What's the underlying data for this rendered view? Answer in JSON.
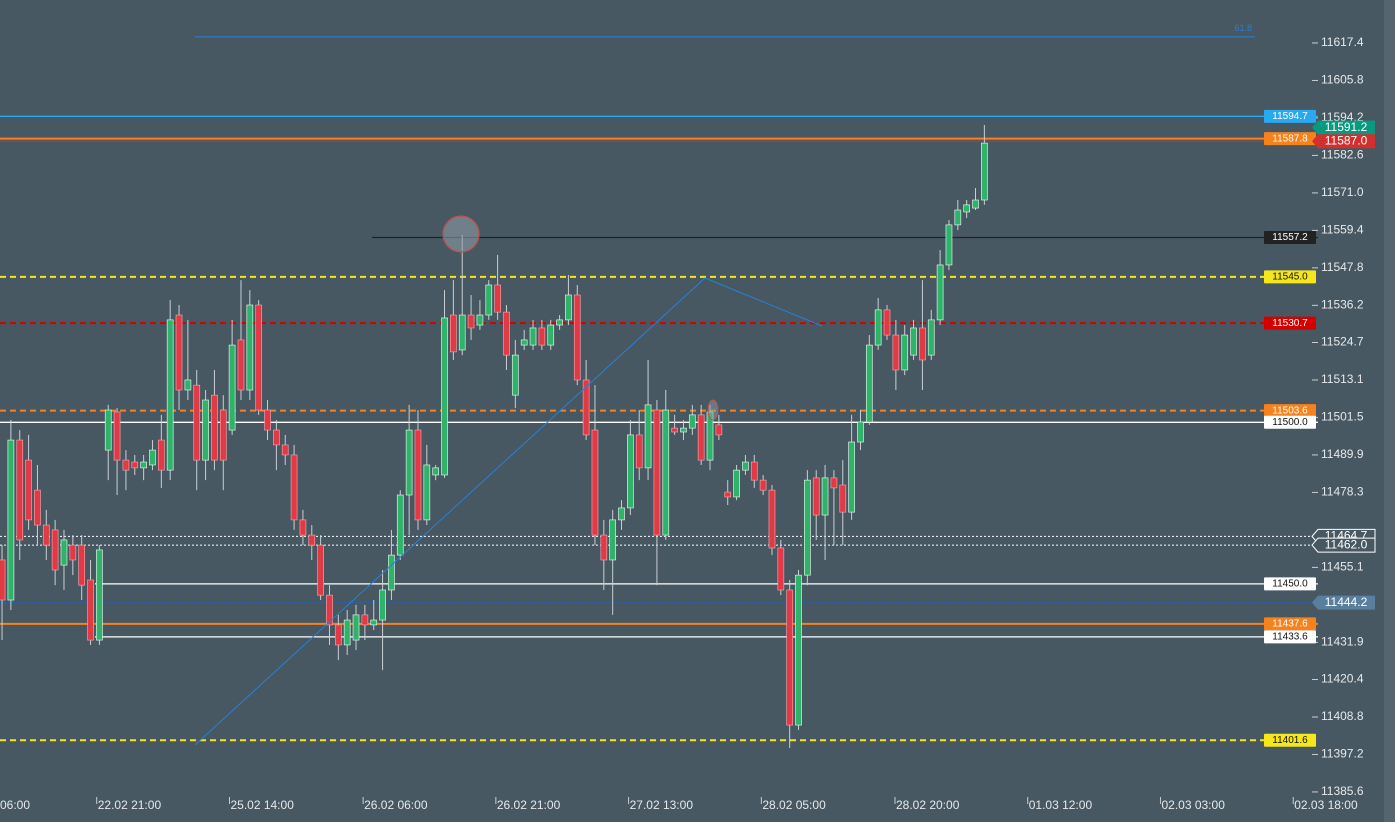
{
  "chart_data": {
    "type": "candlestick",
    "up_color": "#2fb36b",
    "down_color": "#e03a46",
    "ylim": [
      11376.3,
      11630.7
    ],
    "yticks": [
      11617.4,
      11605.8,
      11594.2,
      11582.6,
      {
        "value": 11571.0,
        "label": "11571.0"
      },
      11559.4,
      11547.8,
      11536.2,
      11524.7,
      11513.1,
      11501.5,
      11489.9,
      11478.3,
      11455.1,
      11431.9,
      11420.4,
      11408.8,
      11397.2,
      11385.6
    ],
    "xlim": [
      -0.23,
      148.7
    ],
    "xticks": [
      {
        "value": -4.3,
        "label": "06:00"
      },
      {
        "value": 10.7,
        "label": "22.02 21:00"
      },
      {
        "value": 25.7,
        "label": "25.02 14:00"
      },
      {
        "value": 40.8,
        "label": "26.02 06:00"
      },
      {
        "value": 55.8,
        "label": "26.02 21:00"
      },
      {
        "value": 70.8,
        "label": "27.02 13:00"
      },
      {
        "value": 85.8,
        "label": "28.02 05:00"
      },
      {
        "value": 100.9,
        "label": "28.02 20:00"
      },
      {
        "value": 115.9,
        "label": "01.03 12:00"
      },
      {
        "value": 130.9,
        "label": "02.03 03:00"
      },
      {
        "value": 145.9,
        "label": "02.03 18:00"
      }
    ],
    "fib": {
      "value": 11619.3,
      "label": "61.8",
      "color": "#2a7fd4"
    },
    "levels": [
      {
        "value": 11594.7,
        "label": "11594.7",
        "color": "#29a9f0",
        "style": "solid"
      },
      {
        "value": 11591.2,
        "label": "11591.2",
        "color": "#089981",
        "style": "none"
      },
      {
        "value": 11587.8,
        "label": "11587.8",
        "color": "#f7821b",
        "style": "solid"
      },
      {
        "value": 11587.0,
        "label": "11587.0",
        "color": "#d32f2f",
        "style": "thin"
      },
      {
        "value": 11557.2,
        "label": "11557.2",
        "color": "#222222",
        "style": "solid"
      },
      {
        "value": 11545.0,
        "label": "11545.0",
        "color": "#f5e71c",
        "style": "dashed"
      },
      {
        "value": 11530.7,
        "label": "11530.7",
        "color": "#d50000",
        "style": "dashed"
      },
      {
        "value": 11503.6,
        "label": "11503.6",
        "color": "#f7821b",
        "style": "dashed"
      },
      {
        "value": 11500.0,
        "label": "11500.0",
        "color": "#ffffff",
        "style": "solid"
      },
      {
        "value": 11464.7,
        "label": "11464.7",
        "color": "#ffffff",
        "style": "dotted"
      },
      {
        "value": 11462.0,
        "label": "11462.0",
        "color": "#ffffff",
        "style": "dotted"
      },
      {
        "value": 11450.0,
        "label": "11450.0",
        "color": "#ffffff",
        "style": "solid"
      },
      {
        "value": 11444.2,
        "label": "11444.2",
        "color": "#1e64c8",
        "style": "dotted"
      },
      {
        "value": 11437.6,
        "label": "11437.6",
        "color": "#f7821b",
        "style": "solid"
      },
      {
        "value": 11433.6,
        "label": "11433.6",
        "color": "#ffffff",
        "style": "solid"
      },
      {
        "value": 11401.6,
        "label": "11401.6",
        "color": "#f5e71c",
        "style": "dashed"
      }
    ],
    "ohlc": [
      [
        11457.4,
        11462.0,
        11432.6,
        11445.0
      ],
      [
        11445.0,
        11500.7,
        11441.9,
        11494.5
      ],
      [
        11494.5,
        11497.6,
        11457.4,
        11463.6
      ],
      [
        11488.3,
        11496.1,
        11466.7,
        11469.8
      ],
      [
        11479.0,
        11486.8,
        11462.0,
        11468.2
      ],
      [
        11468.2,
        11472.9,
        11457.4,
        11462.0
      ],
      [
        11466.7,
        11469.8,
        11449.6,
        11454.3
      ],
      [
        11455.8,
        11466.7,
        11448.1,
        11463.6
      ],
      [
        11462.0,
        11465.1,
        11452.7,
        11457.4
      ],
      [
        11462.0,
        11465.1,
        11445.0,
        11449.6
      ],
      [
        11451.2,
        11457.4,
        11431.1,
        11432.6
      ],
      [
        11432.6,
        11462.0,
        11431.1,
        11460.5
      ],
      [
        11491.4,
        11505.4,
        11482.1,
        11503.8
      ],
      [
        11503.2,
        11504.4,
        11477.5,
        11488.3
      ],
      [
        11488.3,
        11491.4,
        11479.0,
        11485.2
      ],
      [
        11487.7,
        11489.9,
        11483.7,
        11485.9
      ],
      [
        11485.9,
        11489.9,
        11482.1,
        11487.7
      ],
      [
        11486.8,
        11494.5,
        11485.2,
        11491.4
      ],
      [
        11494.5,
        11502.3,
        11479.7,
        11485.2
      ],
      [
        11485.2,
        11537.8,
        11482.1,
        11531.7
      ],
      [
        11533.2,
        11536.3,
        11503.8,
        11510.0
      ],
      [
        11510.0,
        11531.7,
        11506.9,
        11513.1
      ],
      [
        11511.5,
        11516.2,
        11479.0,
        11488.3
      ],
      [
        11488.3,
        11510.0,
        11482.1,
        11506.9
      ],
      [
        11508.4,
        11516.2,
        11485.2,
        11488.3
      ],
      [
        11503.8,
        11508.4,
        11479.0,
        11488.3
      ],
      [
        11497.6,
        11531.7,
        11496.1,
        11523.9
      ],
      [
        11525.5,
        11544.0,
        11506.9,
        11510.0
      ],
      [
        11510.0,
        11540.9,
        11506.9,
        11536.3
      ],
      [
        11536.3,
        11537.8,
        11502.3,
        11503.8
      ],
      [
        11503.8,
        11506.9,
        11494.5,
        11497.6
      ],
      [
        11497.6,
        11500.7,
        11485.2,
        11493.0
      ],
      [
        11493.0,
        11496.1,
        11486.8,
        11489.9
      ],
      [
        11489.9,
        11493.0,
        11466.7,
        11469.8
      ],
      [
        11469.8,
        11472.9,
        11462.0,
        11465.1
      ],
      [
        11465.1,
        11468.2,
        11457.4,
        11462.0
      ],
      [
        11462.0,
        11465.1,
        11445.0,
        11446.5
      ],
      [
        11446.5,
        11449.6,
        11431.1,
        11437.3
      ],
      [
        11437.3,
        11440.4,
        11426.4,
        11431.1
      ],
      [
        11431.1,
        11441.9,
        11428.0,
        11438.8
      ],
      [
        11432.6,
        11443.5,
        11429.5,
        11440.4
      ],
      [
        11440.4,
        11443.5,
        11432.6,
        11437.3
      ],
      [
        11437.3,
        11445.0,
        11435.7,
        11438.8
      ],
      [
        11438.8,
        11454.3,
        11423.3,
        11448.1
      ],
      [
        11448.1,
        11466.7,
        11445.0,
        11458.9
      ],
      [
        11458.9,
        11479.0,
        11457.4,
        11477.5
      ],
      [
        11477.5,
        11505.4,
        11465.1,
        11497.6
      ],
      [
        11497.6,
        11503.8,
        11466.7,
        11469.8
      ],
      [
        11469.8,
        11493.0,
        11468.2,
        11486.8
      ],
      [
        11483.7,
        11486.8,
        11482.1,
        11485.9
      ],
      [
        11483.7,
        11540.9,
        11482.8,
        11532.3
      ],
      [
        11533.2,
        11544.0,
        11519.3,
        11521.8
      ],
      [
        11522.4,
        11558.0,
        11520.8,
        11533.2
      ],
      [
        11533.2,
        11539.4,
        11525.5,
        11529.2
      ],
      [
        11530.1,
        11537.8,
        11528.6,
        11533.2
      ],
      [
        11533.2,
        11544.0,
        11531.7,
        11542.5
      ],
      [
        11542.5,
        11551.8,
        11531.7,
        11534.1
      ],
      [
        11534.1,
        11536.3,
        11516.2,
        11520.8
      ],
      [
        11508.4,
        11525.5,
        11504.4,
        11520.8
      ],
      [
        11523.9,
        11528.6,
        11522.4,
        11525.5
      ],
      [
        11523.9,
        11531.7,
        11522.4,
        11529.2
      ],
      [
        11529.2,
        11531.7,
        11522.4,
        11523.9
      ],
      [
        11523.9,
        11531.7,
        11522.4,
        11530.1
      ],
      [
        11530.1,
        11533.2,
        11528.6,
        11531.7
      ],
      [
        11531.7,
        11545.6,
        11530.1,
        11539.4
      ],
      [
        11539.4,
        11542.5,
        11511.5,
        11513.1
      ],
      [
        11513.1,
        11519.3,
        11494.5,
        11496.1
      ],
      [
        11497.6,
        11511.5,
        11462.0,
        11465.1
      ],
      [
        11465.1,
        11469.8,
        11448.1,
        11457.4
      ],
      [
        11457.4,
        11472.9,
        11440.4,
        11469.8
      ],
      [
        11469.8,
        11475.9,
        11466.7,
        11473.5
      ],
      [
        11473.5,
        11500.7,
        11471.3,
        11496.1
      ],
      [
        11496.1,
        11503.8,
        11482.1,
        11485.9
      ],
      [
        11485.9,
        11519.3,
        11482.1,
        11505.4
      ],
      [
        11503.8,
        11506.9,
        11449.6,
        11465.1
      ],
      [
        11465.1,
        11510.0,
        11463.6,
        11503.8
      ],
      [
        11498.2,
        11502.3,
        11496.1,
        11497.0
      ],
      [
        11497.0,
        11500.7,
        11494.5,
        11498.2
      ],
      [
        11498.2,
        11505.4,
        11496.1,
        11502.3
      ],
      [
        11502.3,
        11505.4,
        11486.8,
        11488.3
      ],
      [
        11488.3,
        11505.4,
        11485.2,
        11503.2
      ],
      [
        11499.2,
        11502.3,
        11494.5,
        11496.1
      ],
      [
        11478.4,
        11482.1,
        11474.4,
        11476.9
      ],
      [
        11476.9,
        11486.8,
        11475.9,
        11485.2
      ],
      [
        11485.2,
        11489.9,
        11483.7,
        11487.7
      ],
      [
        11487.7,
        11489.9,
        11479.7,
        11482.1
      ],
      [
        11482.1,
        11483.7,
        11477.5,
        11479.0
      ],
      [
        11479.0,
        11480.6,
        11458.9,
        11461.1
      ],
      [
        11461.1,
        11463.6,
        11446.5,
        11448.1
      ],
      [
        11448.1,
        11451.2,
        11399.2,
        11406.3
      ],
      [
        11406.3,
        11454.3,
        11404.8,
        11452.7
      ],
      [
        11452.7,
        11485.2,
        11449.6,
        11482.1
      ],
      [
        11482.8,
        11485.2,
        11463.6,
        11471.3
      ],
      [
        11471.3,
        11486.8,
        11457.4,
        11482.8
      ],
      [
        11482.8,
        11485.2,
        11462.0,
        11479.7
      ],
      [
        11480.6,
        11488.3,
        11462.0,
        11472.2
      ],
      [
        11472.2,
        11502.3,
        11469.8,
        11493.9
      ],
      [
        11493.9,
        11503.8,
        11491.4,
        11500.1
      ],
      [
        11500.1,
        11527.0,
        11499.2,
        11523.9
      ],
      [
        11523.9,
        11538.5,
        11522.4,
        11534.8
      ],
      [
        11534.8,
        11536.3,
        11525.5,
        11527.0
      ],
      [
        11527.0,
        11531.7,
        11510.0,
        11516.2
      ],
      [
        11516.2,
        11530.1,
        11514.6,
        11527.0
      ],
      [
        11520.8,
        11531.7,
        11519.3,
        11529.2
      ],
      [
        11529.2,
        11544.0,
        11510.0,
        11519.3
      ],
      [
        11520.8,
        11534.8,
        11519.3,
        11531.7
      ],
      [
        11531.7,
        11553.3,
        11530.1,
        11548.7
      ],
      [
        11548.7,
        11562.6,
        11547.1,
        11561.1
      ],
      [
        11561.1,
        11568.8,
        11559.5,
        11565.7
      ],
      [
        11565.1,
        11568.8,
        11563.2,
        11567.3
      ],
      [
        11566.3,
        11572.5,
        11565.7,
        11568.8
      ],
      [
        11568.8,
        11592.0,
        11567.3,
        11586.4
      ]
    ]
  }
}
